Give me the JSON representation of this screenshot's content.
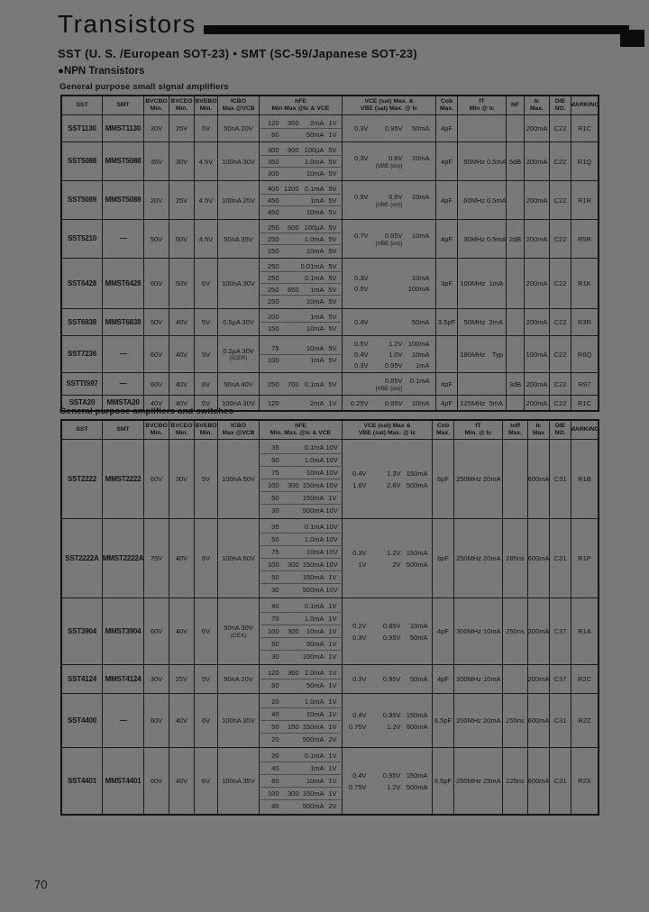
{
  "page": {
    "number": "70"
  },
  "header": {
    "title": "Transistors",
    "subtitle": "SST (U. S. /European SOT-23)  •  SMT (SC-59/Japanese SOT-23)",
    "category": "●NPN Transistors"
  },
  "table1": {
    "section_title": "General purpose small signal amplifiers",
    "header_cells": [
      "SST",
      "SMT",
      "BVCBO\nMin.",
      "BVCEO\nMin.",
      "BVEBO\nMin.",
      "ICBO\nMax @VCB",
      "hFE\nMin Max @Ic & VCE",
      "VCE (sat) Max. &\nVBE (sat) Max.  @ Ic",
      "Cob\nMax.",
      "fT\nMin  @ Ic",
      "NF",
      "Ic\nMax.",
      "DIE\nNO.",
      "MARKING"
    ],
    "rows": [
      {
        "sst": "SST1130",
        "smt": "MMST1130",
        "bvcbo": "30V",
        "bvceo": "25V",
        "bvebo": "5V",
        "icbo": "50nA 20V",
        "hfe": [
          [
            "120",
            "350",
            "2mA",
            "1V"
          ],
          [
            "60",
            "",
            "50mA",
            "1V"
          ]
        ],
        "vce": [
          [
            "0.3V",
            "0.95V",
            "50mA"
          ]
        ],
        "cob": "4pF",
        "ft": "",
        "ft_ic": "",
        "nf": "",
        "ic_max": "200mA",
        "die": "C22",
        "marking": "R1C"
      },
      {
        "sst": "SST5088",
        "smt": "MMST5088",
        "bvcbo": "35V",
        "bvceo": "30V",
        "bvebo": "4.5V",
        "icbo": "100nA 30V",
        "hfe": [
          [
            "300",
            "900",
            "100µA",
            "5V"
          ],
          [
            "350",
            "",
            "1.0mA",
            "5V"
          ],
          [
            "300",
            "",
            "10mA",
            "5V"
          ]
        ],
        "vce": [
          [
            "0.3V",
            "0.6V",
            "10mA"
          ]
        ],
        "vce_note": "(VBE (on))",
        "cob": "4pF",
        "ft": "50MHz",
        "ft_ic": "0.5mA",
        "nf": "5dB",
        "ic_max": "200mA",
        "die": "C22",
        "marking": "R1Q"
      },
      {
        "sst": "SST5089",
        "smt": "MMST5089",
        "bvcbo": "20V",
        "bvceo": "25V",
        "bvebo": "4.5V",
        "icbo": "100nA 25V",
        "hfe": [
          [
            "400",
            "1200",
            "0.1mA",
            "5V"
          ],
          [
            "450",
            "",
            "1mA",
            "5V"
          ],
          [
            "450",
            "",
            "10mA",
            "5V"
          ]
        ],
        "vce": [
          [
            "0.5V",
            "0.6V",
            "10mA"
          ]
        ],
        "vce_note": "(VBE (on))",
        "cob": "4pF",
        "ft": "60MHz",
        "ft_ic": "0.5mA",
        "nf": "",
        "ic_max": "200mA",
        "die": "C22",
        "marking": "R1R"
      },
      {
        "sst": "SST5210",
        "smt": "—",
        "bvcbo": "50V",
        "bvceo": "50V",
        "bvebo": "4.5V",
        "icbo": "50nA 35V",
        "hfe": [
          [
            "250",
            "600",
            "100µA",
            "5V"
          ],
          [
            "250",
            "",
            "1.0mA",
            "5V"
          ],
          [
            "250",
            "",
            "10mA",
            "5V"
          ]
        ],
        "vce": [
          [
            "0.7V",
            "0.85V",
            "10mA"
          ]
        ],
        "vce_note": "(VBE (on))",
        "cob": "4pF",
        "ft": "30MHz",
        "ft_ic": "0.5mA",
        "nf": "2dB",
        "ic_max": "200mA",
        "die": "C22",
        "marking": "R5R"
      },
      {
        "sst": "SST6428",
        "smt": "MMST6428",
        "bvcbo": "60V",
        "bvceo": "50V",
        "bvebo": "6V",
        "icbo": "100nA 30V",
        "hfe": [
          [
            "250",
            "",
            "0.01mA",
            "5V"
          ],
          [
            "250",
            "",
            "0.1mA",
            "5V"
          ],
          [
            "250",
            "650",
            "1mA",
            "5V"
          ],
          [
            "250",
            "",
            "10mA",
            "5V"
          ]
        ],
        "vce": [
          [
            "0.3V",
            "",
            "10mA"
          ],
          [
            "0.5V",
            "",
            "100mA"
          ]
        ],
        "cob": "3pF",
        "ft": "100MHz",
        "ft_ic": "1mA",
        "nf": "",
        "ic_max": "200mA",
        "die": "C22",
        "marking": "R1K"
      },
      {
        "sst": "SST6838",
        "smt": "MMST6838",
        "bvcbo": "50V",
        "bvceo": "40V",
        "bvebo": "5V",
        "icbo": "0.5µA 30V",
        "hfe": [
          [
            "200",
            "",
            "1mA",
            "5V"
          ],
          [
            "150",
            "",
            "10mA",
            "5V"
          ]
        ],
        "vce": [
          [
            "0.4V",
            "",
            "50mA"
          ]
        ],
        "cob": "3.5pF",
        "ft": "50MHz",
        "ft_ic": "2mA",
        "nf": "",
        "ic_max": "200mA",
        "die": "C22",
        "marking": "R3R"
      },
      {
        "sst": "SST7236",
        "smt": "—",
        "bvcbo": "60V",
        "bvceo": "40V",
        "bvebo": "5V",
        "icbo": "0.2µA 30V",
        "icbo_note": "(ICER)",
        "hfe": [
          [
            "75",
            "",
            "10mA",
            "5V"
          ],
          [
            "100",
            "",
            "1mA",
            "5V"
          ]
        ],
        "vce": [
          [
            "0.5V",
            "1.2V",
            "100mA"
          ],
          [
            "0.4V",
            "1.0V",
            "10mA"
          ],
          [
            "0.3V",
            "0.95V",
            "1mA"
          ]
        ],
        "cob": "",
        "ft": "180MHz",
        "ft_ic": "Typ",
        "nf": "",
        "ic_max": "100mA",
        "die": "C22",
        "marking": "R6Q"
      },
      {
        "sst": "SSTTIS97",
        "smt": "—",
        "bvcbo": "60V",
        "bvceo": "40V",
        "bvebo": "6V",
        "icbo": "50nA 40V",
        "hfe": [
          [
            "250",
            "700",
            "0.1mA",
            "5V"
          ]
        ],
        "vce": [
          [
            "",
            "0.85V",
            "0.1mA"
          ]
        ],
        "vce_note": "(VBE (on))",
        "cob": "4pF",
        "ft": "",
        "ft_ic": "",
        "nf": "3dB",
        "ic_max": "200mA",
        "die": "C22",
        "marking": "R97"
      },
      {
        "sst": "SSTA20",
        "smt": "MMSTA20",
        "bvcbo": "40V",
        "bvceo": "40V",
        "bvebo": "5V",
        "icbo": "100nA 30V",
        "hfe": [
          [
            "120",
            "",
            "2mA",
            "1V"
          ]
        ],
        "vce": [
          [
            "0.25V",
            "0.95V",
            "10mA"
          ]
        ],
        "cob": "4pF",
        "ft": "125MHz",
        "ft_ic": "5mA",
        "nf": "",
        "ic_max": "200mA",
        "die": "C22",
        "marking": "R1C"
      }
    ]
  },
  "table2": {
    "section_title": "General purpose amplifiers and switches",
    "header_cells": [
      "SST",
      "SMT",
      "BVCBO\nMin.",
      "BVCEO\nMin.",
      "BVEBO\nMin.",
      "ICBO\nMax @VCB",
      "hFE\nMin. Max. @Ic & VCE",
      "VCE (sat) Max &\nVBE (sat) Max.  @ Ic",
      "Cob\nMax.",
      "fT\nMin.  @ Ic",
      "toff\nMax.",
      "Ic\nMax",
      "DIE\nNO.",
      "MARKING"
    ],
    "rows": [
      {
        "sst": "SST2222",
        "smt": "MMST2222",
        "bvcbo": "60V",
        "bvceo": "30V",
        "bvebo": "5V",
        "icbo": "100nA 50V",
        "hfe": [
          [
            "35",
            "",
            "0.1mA",
            "10V"
          ],
          [
            "50",
            "",
            "1.0mA",
            "10V"
          ],
          [
            "75",
            "",
            "10mA",
            "10V"
          ],
          [
            "100",
            "300",
            "150mA",
            "10V"
          ],
          [
            "50",
            "",
            "150mA",
            "1V"
          ],
          [
            "30",
            "",
            "500mA",
            "10V"
          ]
        ],
        "vce": [
          [
            "0.4V",
            "1.3V",
            "150mA"
          ],
          [
            "1.6V",
            "2.6V",
            "500mA"
          ]
        ],
        "cob": "8pF",
        "ft": "250MHz",
        "ft_ic": "20mA",
        "toff": "",
        "ic_max": "600mA",
        "die": "C31",
        "marking": "R1B"
      },
      {
        "sst": "SST2222A",
        "smt": "MMST2222A",
        "bvcbo": "75V",
        "bvceo": "40V",
        "bvebo": "6V",
        "icbo": "100nA 60V",
        "hfe": [
          [
            "35",
            "",
            "0.1mA",
            "10V"
          ],
          [
            "50",
            "",
            "1.0mA",
            "10V"
          ],
          [
            "75",
            "",
            "10mA",
            "10V"
          ],
          [
            "100",
            "300",
            "150mA",
            "10V"
          ],
          [
            "50",
            "",
            "150mA",
            "1V"
          ],
          [
            "30",
            "",
            "500mA",
            "10V"
          ]
        ],
        "vce": [
          [
            "0.3V",
            "1.2V",
            "150mA"
          ],
          [
            "1V",
            "2V",
            "500mA"
          ]
        ],
        "cob": "8pF",
        "ft": "250MHz",
        "ft_ic": "20mA",
        "toff": "285ns",
        "ic_max": "600mA",
        "die": "C31",
        "marking": "R1P"
      },
      {
        "sst": "SST3904",
        "smt": "MMST3904",
        "bvcbo": "60V",
        "bvceo": "40V",
        "bvebo": "6V",
        "icbo": "50nA 30V",
        "icbo_note": "(CEX)",
        "hfe": [
          [
            "40",
            "",
            "0.1mA",
            "1V"
          ],
          [
            "70",
            "",
            "1.0mA",
            "1V"
          ],
          [
            "100",
            "300",
            "10mA",
            "1V"
          ],
          [
            "60",
            "",
            "50mA",
            "1V"
          ],
          [
            "30",
            "",
            "100mA",
            "1V"
          ]
        ],
        "vce": [
          [
            "0.2V",
            "0.85V",
            "10mA"
          ],
          [
            "0.3V",
            "0.95V",
            "50mA"
          ]
        ],
        "cob": "4pF",
        "ft": "300MHz",
        "ft_ic": "10mA",
        "toff": "250ns",
        "ic_max": "200mA",
        "die": "C37",
        "marking": "R1A"
      },
      {
        "sst": "SST4124",
        "smt": "MMST4124",
        "bvcbo": "30V",
        "bvceo": "25V",
        "bvebo": "5V",
        "icbo": "50nA 20V",
        "hfe": [
          [
            "120",
            "360",
            "2.0mA",
            "1V"
          ],
          [
            "60",
            "",
            "50mA",
            "1V"
          ]
        ],
        "vce": [
          [
            "0.3V",
            "0.95V",
            "50mA"
          ]
        ],
        "cob": "4pF",
        "ft": "300MHz",
        "ft_ic": "10mA",
        "toff": "",
        "ic_max": "200mA",
        "die": "C37",
        "marking": "R2C"
      },
      {
        "sst": "SST4400",
        "smt": "—",
        "bvcbo": "60V",
        "bvceo": "40V",
        "bvebo": "6V",
        "icbo": "100nA 35V",
        "hfe": [
          [
            "20",
            "",
            "1.0mA",
            "1V"
          ],
          [
            "40",
            "",
            "10mA",
            "1V"
          ],
          [
            "50",
            "150",
            "150mA",
            "1V"
          ],
          [
            "20",
            "",
            "500mA",
            "2V"
          ]
        ],
        "vce": [
          [
            "0.4V",
            "0.95V",
            "150mA"
          ],
          [
            "0.75V",
            "1.2V",
            "600mA"
          ]
        ],
        "cob": "6.5pF",
        "ft": "200MHz",
        "ft_ic": "20mA",
        "toff": "255ns",
        "ic_max": "600mA",
        "die": "C31",
        "marking": "R2Z"
      },
      {
        "sst": "SST4401",
        "smt": "MMST4401",
        "bvcbo": "60V",
        "bvceo": "40V",
        "bvebo": "6V",
        "icbo": "100nA 35V",
        "hfe": [
          [
            "20",
            "",
            "0.1mA",
            "1V"
          ],
          [
            "40",
            "",
            "1mA",
            "1V"
          ],
          [
            "80",
            "",
            "10mA",
            "1V"
          ],
          [
            "100",
            "300",
            "150mA",
            "1V"
          ],
          [
            "40",
            "",
            "500mA",
            "2V"
          ]
        ],
        "vce": [
          [
            "0.4V",
            "0.95V",
            "150mA"
          ],
          [
            "0.75V",
            "1.2V",
            "500mA"
          ]
        ],
        "cob": "6.5pF",
        "ft": "250MHz",
        "ft_ic": "25mA",
        "toff": "225ns",
        "ic_max": "600mA",
        "die": "C31",
        "marking": "R2X"
      }
    ]
  }
}
